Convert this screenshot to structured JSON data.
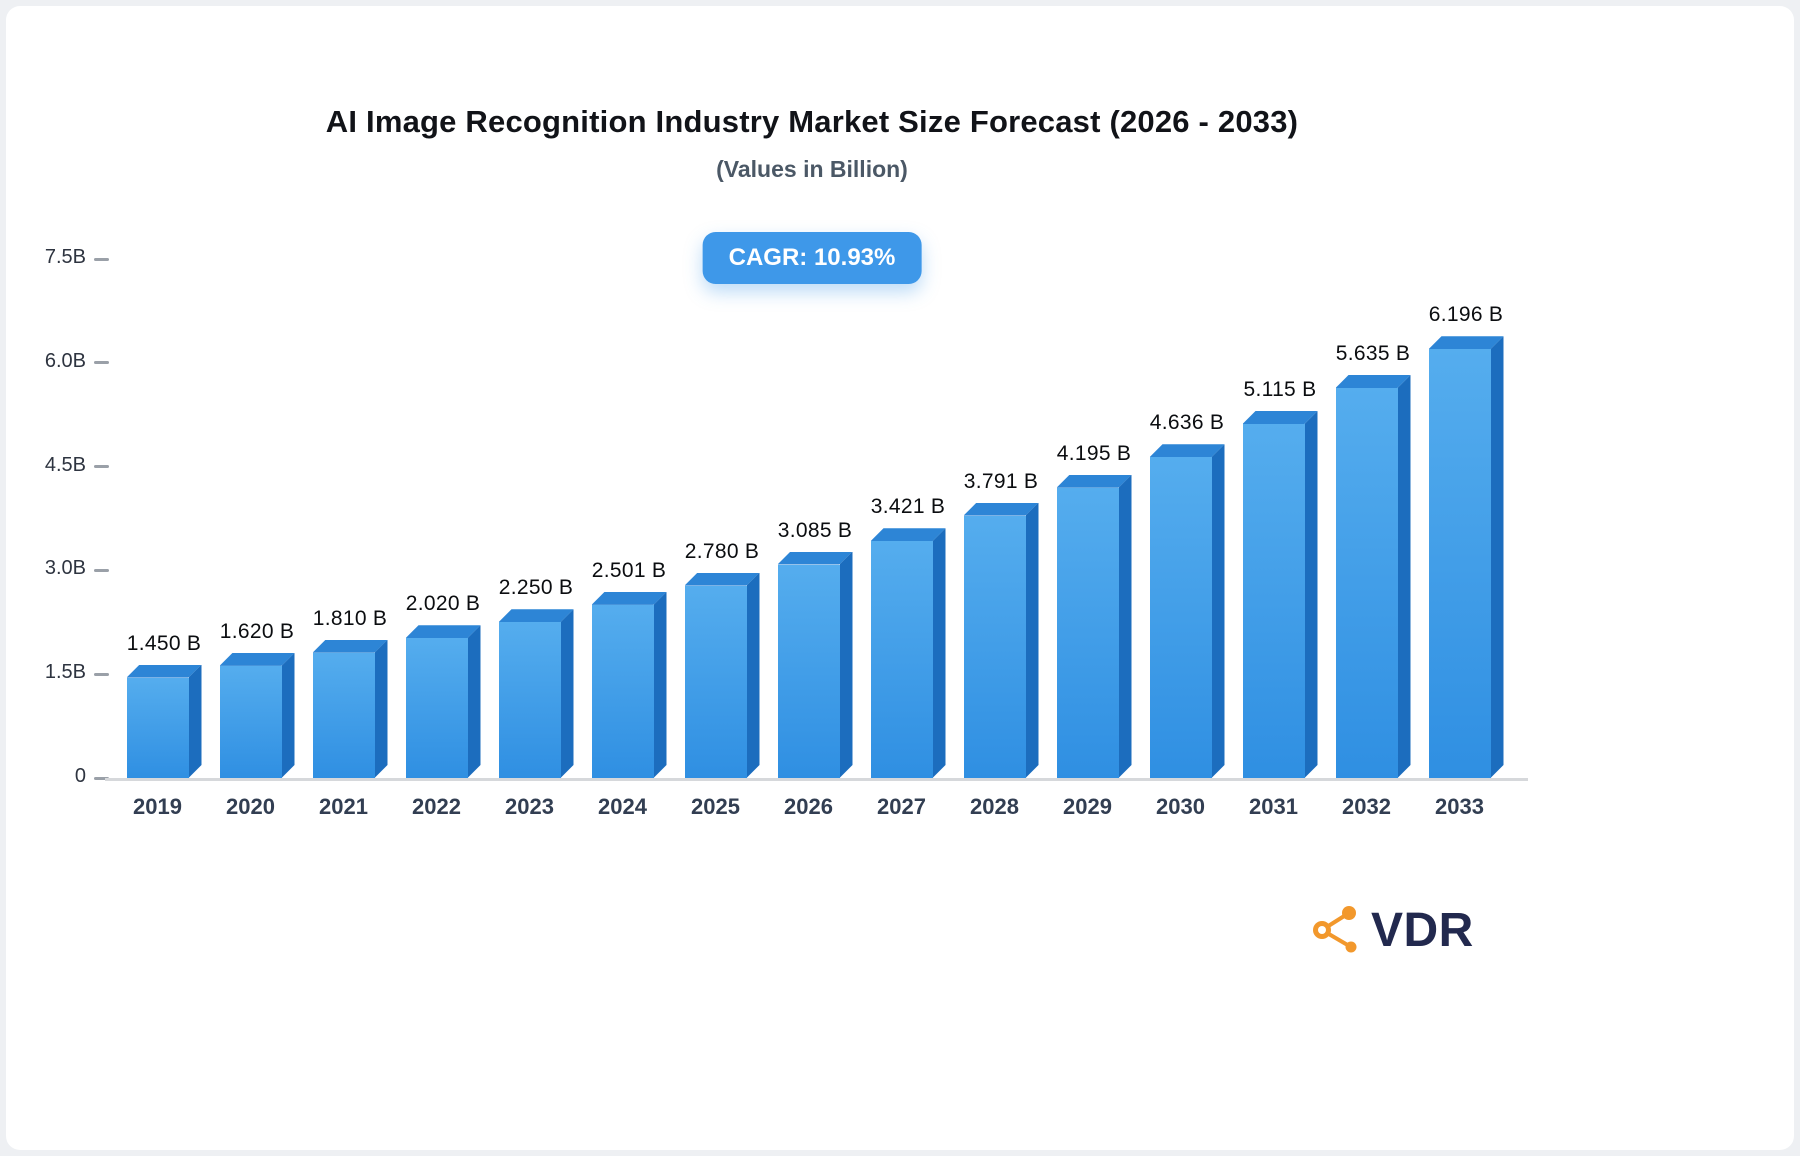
{
  "title": "AI Image Recognition Industry Market Size Forecast (2026 - 2033)",
  "subtitle": "(Values in Billion)",
  "cagr_label": "CAGR: 10.93%",
  "logo": {
    "text": "VDR",
    "icon": "network-nodes-icon",
    "icon_color": "#F2982C"
  },
  "colors": {
    "badge_bg": "#3E98E9",
    "bar_front_top": "#55ADEE",
    "bar_front_bottom": "#2F8FE2",
    "bar_side": "#1C6DBE",
    "bar_top_face": "#2D85D6",
    "axis_line": "#D6D8DB",
    "tick_dash": "#9AA0A8",
    "title_text": "#111318",
    "subtitle_text": "#4B5866",
    "year_text": "#323E52"
  },
  "chart_data": {
    "type": "bar",
    "title": "AI Image Recognition Industry Market Size Forecast (2026 - 2033)",
    "subtitle": "(Values in Billion)",
    "annotation": "CAGR: 10.93%",
    "categories": [
      "2019",
      "2020",
      "2021",
      "2022",
      "2023",
      "2024",
      "2025",
      "2026",
      "2027",
      "2028",
      "2029",
      "2030",
      "2031",
      "2032",
      "2033"
    ],
    "values": [
      1.45,
      1.62,
      1.81,
      2.02,
      2.25,
      2.501,
      2.78,
      3.085,
      3.421,
      3.791,
      4.195,
      4.636,
      5.115,
      5.635,
      6.196
    ],
    "value_labels": [
      "1.450 B",
      "1.620 B",
      "1.810 B",
      "2.020 B",
      "2.250 B",
      "2.501 B",
      "2.780 B",
      "3.085 B",
      "3.421 B",
      "3.791 B",
      "4.195 B",
      "4.636 B",
      "5.115 B",
      "5.635 B",
      "6.196 B"
    ],
    "xlabel": "",
    "ylabel": "",
    "ylim": [
      0,
      7.5
    ],
    "yticks": [
      {
        "value": 7.5,
        "label": "7.5B"
      },
      {
        "value": 6.0,
        "label": "6.0B"
      },
      {
        "value": 4.5,
        "label": "4.5B"
      },
      {
        "value": 3.0,
        "label": "3.0B"
      },
      {
        "value": 1.5,
        "label": "1.5B"
      },
      {
        "value": 0,
        "label": "0"
      }
    ],
    "grid": false,
    "legend": false,
    "units": "Billion"
  }
}
